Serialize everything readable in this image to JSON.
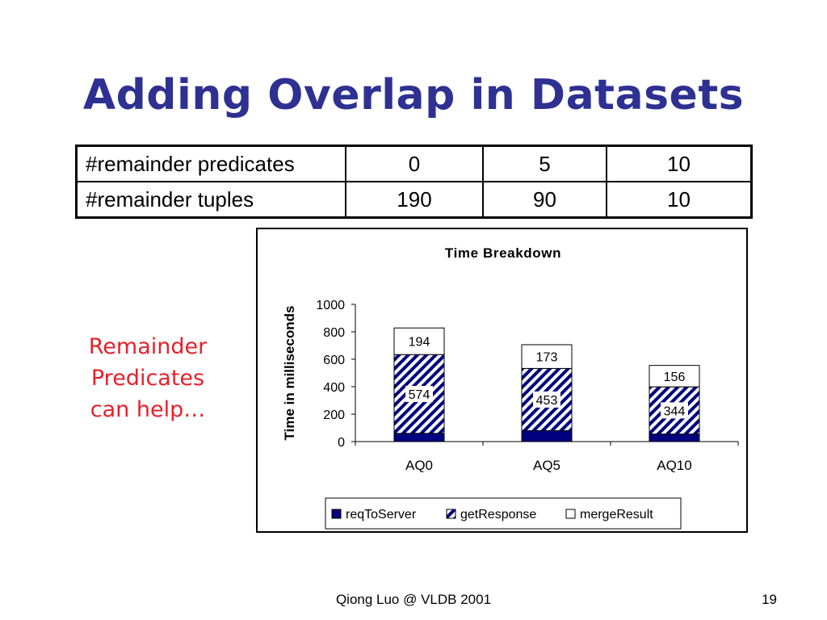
{
  "slide": {
    "title": "Adding Overlap in Datasets",
    "note": "Remainder Predicates can help…",
    "footer": "Qiong Luo @ VLDB 2001",
    "page_number": "19"
  },
  "table": {
    "rows": [
      {
        "label": "#remainder predicates",
        "values": [
          "0",
          "5",
          "10"
        ]
      },
      {
        "label": "#remainder tuples",
        "values": [
          "190",
          "90",
          "10"
        ]
      }
    ]
  },
  "chart_data": {
    "type": "bar",
    "stacked": true,
    "title": "Time Breakdown",
    "xlabel": "",
    "ylabel": "Time in milliseconds",
    "categories": [
      "AQ0",
      "AQ5",
      "AQ10"
    ],
    "ylim": [
      0,
      1000
    ],
    "yticks": [
      0,
      200,
      400,
      600,
      800,
      1000
    ],
    "grid": false,
    "legend": "bottom",
    "series": [
      {
        "name": "reqToServer",
        "values": [
          60,
          80,
          55
        ],
        "color": "#000080",
        "pattern": "solid",
        "labeled": false
      },
      {
        "name": "getResponse",
        "values": [
          574,
          453,
          344
        ],
        "color": "#000080",
        "pattern": "diagonal-stripes",
        "labeled": true
      },
      {
        "name": "mergeResult",
        "values": [
          194,
          173,
          156
        ],
        "color": "#ffffff",
        "pattern": "solid",
        "labeled": true
      }
    ]
  }
}
